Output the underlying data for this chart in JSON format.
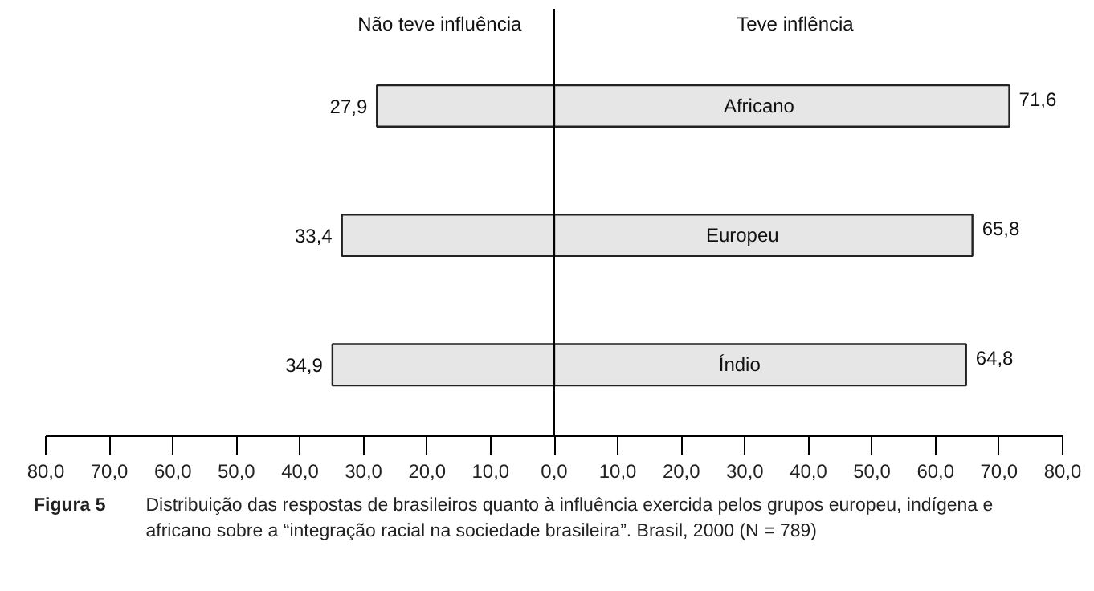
{
  "chart_data": {
    "type": "bar",
    "orientation": "horizontal",
    "categories": [
      "Africano",
      "Europeu",
      "Índio"
    ],
    "series": [
      {
        "name": "Não teve influência",
        "color": "#e6e6e6",
        "values": [
          27.9,
          33.4,
          34.9
        ],
        "base": [
          -27.9,
          -33.4,
          -34.9
        ],
        "value_labels": [
          "27,9",
          "33,4",
          "34,9"
        ]
      },
      {
        "name": "Teve inflência",
        "color": "#e6e6e6",
        "values": [
          71.6,
          65.8,
          64.8
        ],
        "base": [
          0,
          0,
          0
        ],
        "value_labels": [
          "71,6",
          "65,8",
          "64,8"
        ]
      }
    ],
    "xlim": [
      -80,
      80
    ],
    "xticks": [
      {
        "value": -80,
        "label": "80,0"
      },
      {
        "value": -70,
        "label": "70,0"
      },
      {
        "value": -60,
        "label": "60,0"
      },
      {
        "value": -50,
        "label": "50,0"
      },
      {
        "value": -40,
        "label": "40,0"
      },
      {
        "value": -30,
        "label": "30,0"
      },
      {
        "value": -20,
        "label": "20,0"
      },
      {
        "value": -10,
        "label": "10,0"
      },
      {
        "value": 0,
        "label": "0,0"
      },
      {
        "value": 10,
        "label": "10,0"
      },
      {
        "value": 20,
        "label": "20,0"
      },
      {
        "value": 30,
        "label": "30,0"
      },
      {
        "value": 40,
        "label": "40,0"
      },
      {
        "value": 50,
        "label": "50,0"
      },
      {
        "value": 60,
        "label": "60,0"
      },
      {
        "value": 70,
        "label": "70,0"
      },
      {
        "value": 80,
        "label": "80,0"
      }
    ],
    "ref_lines": [
      {
        "axis": "x",
        "value": 0,
        "color": "#000000"
      }
    ],
    "grid": false,
    "annotations": [
      "Figura 5",
      "Distribuição das respostas de brasileiros quanto à influência exercida pelos grupos europeu, indígena e africano sobre a “integração racial na sociedade brasileira”. Brasil, 2000 (N = 789)"
    ]
  }
}
